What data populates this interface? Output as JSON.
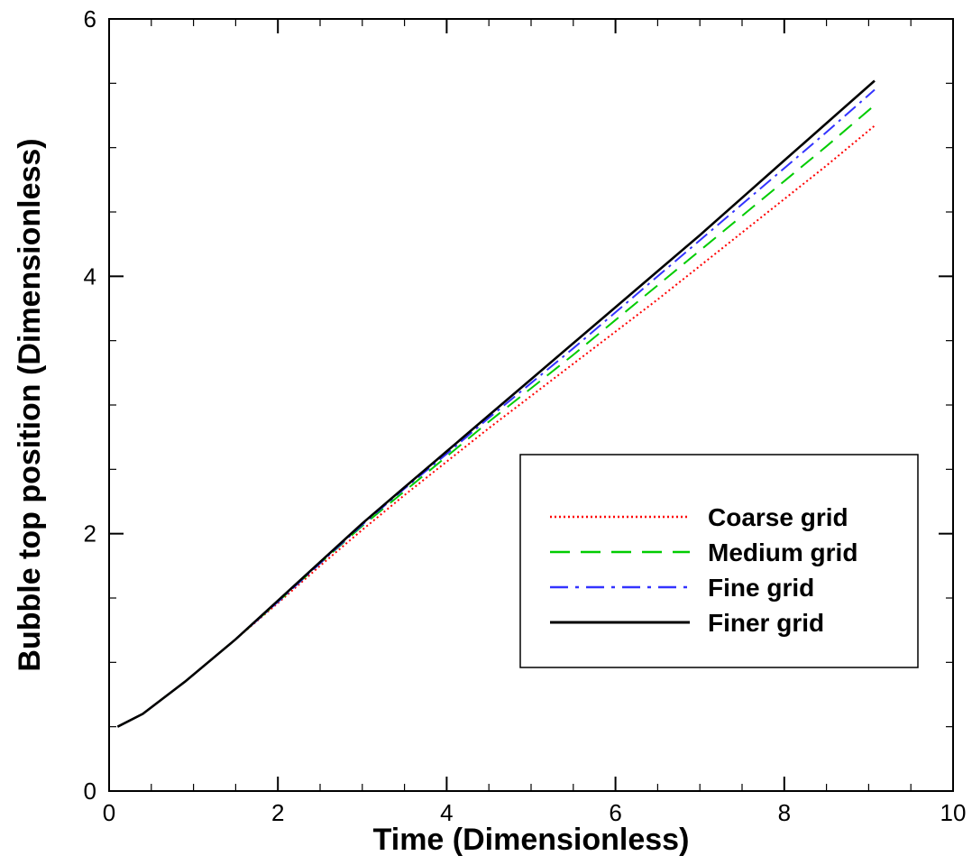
{
  "chart_data": {
    "type": "line",
    "xlabel": "Time (Dimensionless)",
    "ylabel": "Bubble top position (Dimensionless)",
    "xlim": [
      0,
      10
    ],
    "ylim": [
      0,
      6
    ],
    "x_ticks": [
      0,
      2,
      4,
      6,
      8,
      10
    ],
    "y_ticks": [
      0,
      2,
      4,
      6
    ],
    "x_tick_labels": [
      "0",
      "2",
      "4",
      "6",
      "8",
      "10"
    ],
    "y_tick_labels": [
      "0",
      "2",
      "4",
      "6"
    ],
    "grid": false,
    "legend_position": "lower-right",
    "series": [
      {
        "name": "Coarse grid",
        "color": "#ff0000",
        "style": "dotted",
        "x": [
          0.1,
          0.4,
          0.9,
          1.5,
          2.0,
          2.5,
          3.0,
          3.5,
          4.0,
          4.5,
          5.0,
          5.5,
          6.0,
          6.5,
          7.0,
          7.5,
          8.0,
          8.5,
          9.07
        ],
        "y": [
          0.5,
          0.6,
          0.85,
          1.18,
          1.46,
          1.75,
          2.03,
          2.3,
          2.56,
          2.82,
          3.07,
          3.32,
          3.57,
          3.82,
          4.08,
          4.34,
          4.6,
          4.86,
          5.17
        ]
      },
      {
        "name": "Medium grid",
        "color": "#00cc00",
        "style": "dashed",
        "x": [
          0.1,
          0.4,
          0.9,
          1.5,
          2.0,
          2.5,
          3.0,
          3.5,
          4.0,
          4.5,
          5.0,
          5.5,
          6.0,
          6.5,
          7.0,
          7.5,
          8.0,
          8.5,
          9.07
        ],
        "y": [
          0.5,
          0.6,
          0.85,
          1.18,
          1.47,
          1.77,
          2.06,
          2.33,
          2.6,
          2.87,
          3.13,
          3.39,
          3.66,
          3.93,
          4.2,
          4.47,
          4.74,
          5.01,
          5.33
        ]
      },
      {
        "name": "Fine grid",
        "color": "#3333ff",
        "style": "dashdot",
        "x": [
          0.1,
          0.4,
          0.9,
          1.5,
          2.0,
          2.5,
          3.0,
          3.5,
          4.0,
          4.5,
          5.0,
          5.5,
          6.0,
          6.5,
          7.0,
          7.5,
          8.0,
          8.5,
          9.07
        ],
        "y": [
          0.5,
          0.6,
          0.85,
          1.18,
          1.47,
          1.77,
          2.07,
          2.35,
          2.62,
          2.9,
          3.17,
          3.44,
          3.72,
          4.0,
          4.28,
          4.56,
          4.84,
          5.12,
          5.45
        ]
      },
      {
        "name": "Finer grid",
        "color": "#000000",
        "style": "solid",
        "x": [
          0.1,
          0.4,
          0.9,
          1.5,
          2.0,
          2.5,
          3.0,
          3.5,
          4.0,
          4.5,
          5.0,
          5.5,
          6.0,
          6.5,
          7.0,
          7.5,
          8.0,
          8.5,
          9.07
        ],
        "y": [
          0.5,
          0.6,
          0.85,
          1.18,
          1.48,
          1.78,
          2.08,
          2.36,
          2.64,
          2.92,
          3.2,
          3.48,
          3.76,
          4.04,
          4.32,
          4.61,
          4.9,
          5.19,
          5.52
        ]
      }
    ]
  }
}
